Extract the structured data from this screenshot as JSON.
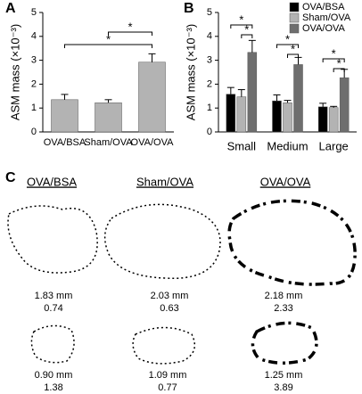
{
  "chart_data": [
    {
      "type": "bar",
      "panel": "A",
      "ylabel": "ASM mass (×10⁻³)",
      "categories": [
        "OVA/BSA",
        "Sham/OVA",
        "OVA/OVA"
      ],
      "values": [
        1.35,
        1.22,
        2.92
      ],
      "errors": [
        0.22,
        0.13,
        0.35
      ],
      "color": "#b3b3b3",
      "ylim": [
        0,
        5
      ],
      "yticks": [
        0,
        1,
        2,
        3,
        4,
        5
      ],
      "annotations": [
        "*",
        "*"
      ]
    },
    {
      "type": "bar",
      "panel": "B",
      "ylabel": "ASM mass (×10⁻³)",
      "categories": [
        "Small",
        "Medium",
        "Large"
      ],
      "series": [
        {
          "name": "OVA/BSA",
          "color": "#000000",
          "values": [
            1.58,
            1.3,
            1.05
          ],
          "errors": [
            0.28,
            0.25,
            0.15
          ]
        },
        {
          "name": "Sham/OVA",
          "color": "#b3b3b3",
          "values": [
            1.47,
            1.22,
            1.02
          ],
          "errors": [
            0.3,
            0.1,
            0.05
          ]
        },
        {
          "name": "OVA/OVA",
          "color": "#6e6e6e",
          "values": [
            3.33,
            2.82,
            2.27
          ],
          "errors": [
            0.5,
            0.3,
            0.35
          ]
        }
      ],
      "ylim": [
        0,
        5
      ],
      "yticks": [
        0,
        1,
        2,
        3,
        4,
        5
      ],
      "legend": "upper right",
      "annotations": [
        "*",
        "*",
        "*",
        "*",
        "*",
        "*"
      ]
    }
  ],
  "micrographs": {
    "panel": "C",
    "groups": [
      {
        "title": "OVA/BSA",
        "airways": [
          {
            "size": "1.83 mm",
            "mass": "0.74"
          },
          {
            "size": "0.90 mm",
            "mass": "1.38"
          }
        ]
      },
      {
        "title": "Sham/OVA",
        "airways": [
          {
            "size": "2.03 mm",
            "mass": "0.63"
          },
          {
            "size": "1.09 mm",
            "mass": "0.77"
          }
        ]
      },
      {
        "title": "OVA/OVA",
        "airways": [
          {
            "size": "2.18 mm",
            "mass": "2.33"
          },
          {
            "size": "1.25 mm",
            "mass": "3.89"
          }
        ]
      }
    ]
  }
}
